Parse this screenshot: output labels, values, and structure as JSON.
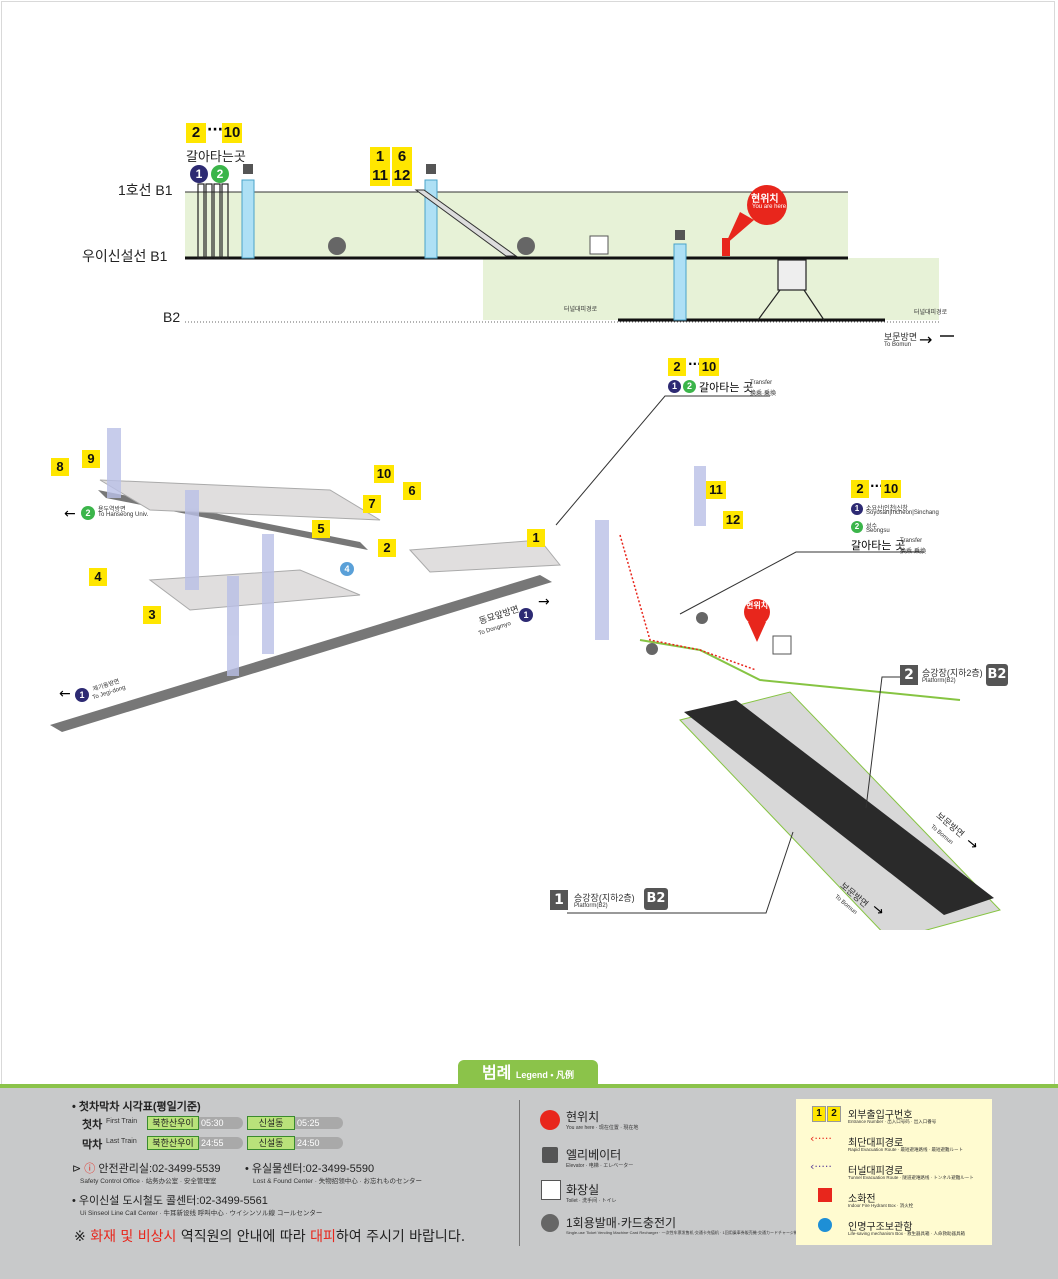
{
  "colors": {
    "line1": "#2d2a73",
    "line2": "#3bb54a",
    "highlight": "#ffe600",
    "you_are_here": "#e8261c",
    "platform_green": "#e7f2d7",
    "legend_bg": "#c8c9ca",
    "legend_accent": "#8bc34a"
  },
  "section": {
    "levels": {
      "l1": "1호선 B1",
      "l2": "우이신설선 B1",
      "l3": "B2"
    },
    "transfer_exit_a": "2",
    "transfer_exit_b": "10",
    "transfer_label": "갈아타는곳",
    "line_badges": [
      "1",
      "2"
    ],
    "exits_mid": [
      "1",
      "6",
      "11",
      "12"
    ],
    "you_are_here": {
      "ko": "현위치",
      "en": "You are here",
      "cn": "现在位置",
      "jp": "現在地"
    },
    "tunnel_exit": "터널대피경로",
    "to_bomun": {
      "ko": "보문방면",
      "en": "To Bomun",
      "sub": "普门方向·ボムン方面"
    }
  },
  "map": {
    "exits": [
      "8",
      "9",
      "10",
      "7",
      "6",
      "5",
      "2",
      "4",
      "3",
      "1",
      "11",
      "12"
    ],
    "transfer1": {
      "a": "2",
      "b": "10",
      "text": "갈아타는 곳",
      "en": "Transfer",
      "cn": "换乘·乗換"
    },
    "transfer2": {
      "a": "2",
      "b": "10",
      "line1": "소요산|인천|신창",
      "line1_sub": "Soyosan|Incheon|Sinchang",
      "line2": "성수",
      "line2_sub": "Seongsu",
      "text": "갈아타는 곳",
      "en": "Transfer",
      "cn": "换乘·乗換"
    },
    "to_hanseong": {
      "ko": "용두역방면",
      "en": "To Hanseong Univ.",
      "badge": "2"
    },
    "to_dongmyo": {
      "ko": "동묘앞방면",
      "en": "To Dongmyo",
      "badge": "1"
    },
    "to_jegi": {
      "ko": "제기동방면",
      "en": "To Jegi-dong",
      "badge": "1"
    },
    "line4_badge": "4",
    "platform2": {
      "num": "2",
      "ko": "승강장(지하2층)",
      "en": "Platform(B2)",
      "tag": "B2"
    },
    "platform1": {
      "num": "1",
      "ko": "승강장(지하2층)",
      "en": "Platform(B2)",
      "tag": "B2"
    },
    "you_are_here": {
      "ko": "현위치",
      "en": "You are here",
      "cn": "现在位置",
      "jp": "現在地"
    },
    "to_bomun1": {
      "ko": "보문방면",
      "en": "To Bomun"
    },
    "to_bomun2": {
      "ko": "보문방면",
      "en": "To Bomun"
    }
  },
  "legend": {
    "title": "범례",
    "title_en": "Legend",
    "title_cn": "凡例",
    "timetable_title": "첫차막차 시각표(평일기준)",
    "first_label": "첫차",
    "first_en": "First Train",
    "last_label": "막차",
    "last_en": "Last Train",
    "st_a": "북한산우이",
    "st_b": "신설동",
    "first_a": "05:30",
    "first_b": "05:25",
    "last_a": "24:55",
    "last_b": "24:50",
    "safety": "안전관리실:02-3499-5539",
    "safety_en": "Safety Control Office · 站务办公室 · 安全管理室",
    "lost": "유실물센터:02-3499-5590",
    "lost_en": "Lost & Found Center · 失物招领中心 · お忘れものセンター",
    "callcenter": "우이신설 도시철도 콜센터:02-3499-5561",
    "callcenter_en": "Ui Sinseol Line Call Center · 牛耳新设线 呼叫中心 · ウイシンソル線 コールセンター",
    "notice_pre": "※ ",
    "notice_r1": "화재 및 비상시",
    "notice_mid": " 역직원의 안내에 따라 ",
    "notice_r2": "대피",
    "notice_end": "하여 주시기 바랍니다.",
    "mid": [
      {
        "ko": "현위치",
        "en": "You are here · 现在位置 · 現在地",
        "icon": "you-are-here-icon"
      },
      {
        "ko": "엘리베이터",
        "en": "Elevator · 电梯 · エレベーター",
        "icon": "elevator-icon"
      },
      {
        "ko": "화장실",
        "en": "Toilet · 洗手间 · トイレ",
        "icon": "toilet-icon"
      },
      {
        "ko": "1회용발매·카드충전기",
        "en": "Single-use Ticket Vending Machine·Card Recharger · 一次性车票发售机·交通卡充值机 · 1回用乗車券販売機·交通カードチャージ機",
        "icon": "ticket-machine-icon"
      }
    ],
    "right": [
      {
        "ko": "외부출입구번호",
        "en": "Entrance Number · 出入口号码 · 出入口番号",
        "icon": "entrance-number-icon"
      },
      {
        "ko": "최단대피경로",
        "en": "Rapid Evacuation Route · 最短避难路线 · 最短避難ルート",
        "icon": "rapid-evacuation-icon"
      },
      {
        "ko": "터널대피경로",
        "en": "Tunnel Evacuation Route · 隧道避难路线 · トンネル避難ルート",
        "icon": "tunnel-evacuation-icon"
      },
      {
        "ko": "소화전",
        "en": "Indoor Fire Hydrant Box · 消火栓",
        "icon": "fire-hydrant-icon"
      },
      {
        "ko": "인명구조보관함",
        "en": "Life-saving mechanism Box · 救生器具箱 · 人命救助器具箱",
        "icon": "lifesaving-box-icon"
      }
    ],
    "entrance_nums": [
      "1",
      "2"
    ]
  }
}
